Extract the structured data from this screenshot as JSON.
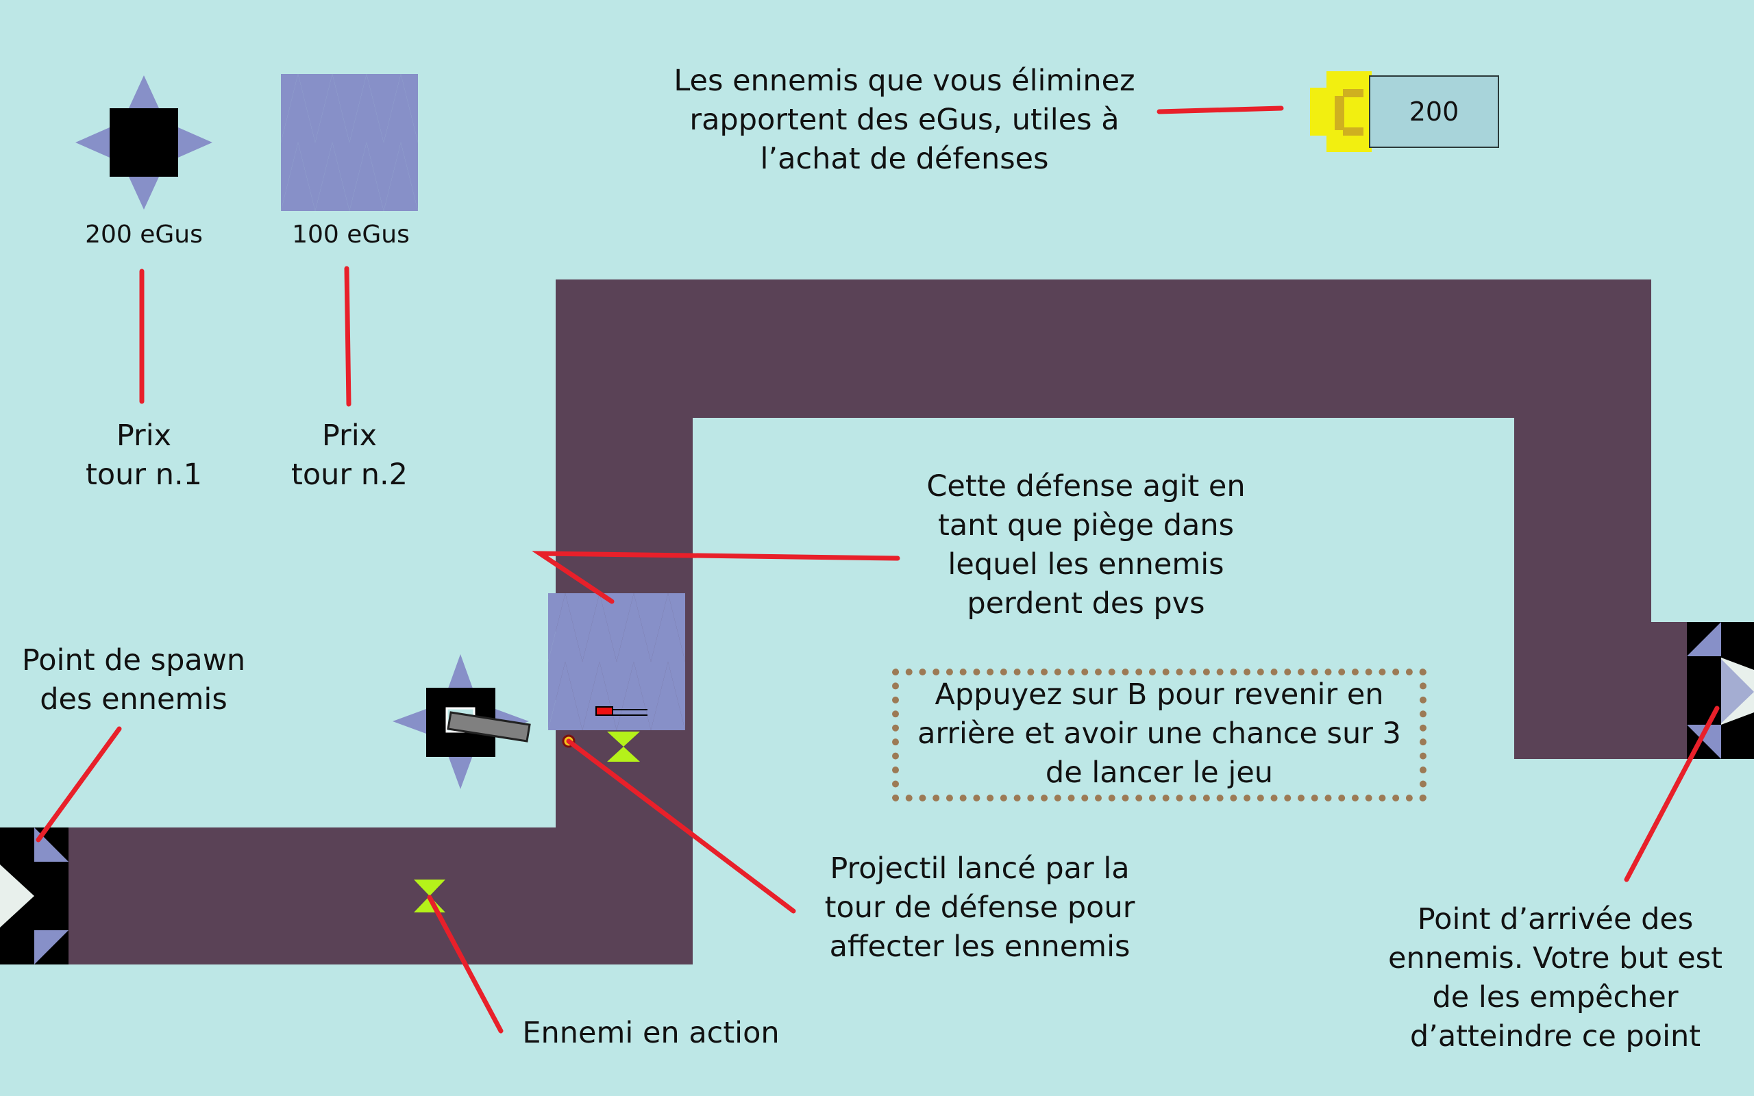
{
  "shop": {
    "tower1": {
      "price": "200 eGus",
      "icon": "spike-tower-icon"
    },
    "tower2": {
      "price": "100 eGus",
      "icon": "spike-trap-icon"
    }
  },
  "currency": {
    "amount": "200",
    "icon": "egu-coin-icon"
  },
  "annotations": {
    "currency_info": "Les ennemis que vous éliminez\nrapportent des eGus, utiles à\nl’achat de défenses",
    "price_tower1": "Prix\ntour n.1",
    "price_tower2": "Prix\ntour n.2",
    "trap_info": "Cette défense agit en\ntant que piège dans\nlequel les ennemis\nperdent des pvs",
    "spawn_info": "Point de spawn\ndes ennemis",
    "back_info": "Appuyez sur B pour revenir en\narrière et avoir une chance sur 3\nde lancer le jeu",
    "projectile_info": "Projectil lancé par la\ntour de défense pour\naffecter les ennemis",
    "enemy_info": "Ennemi en action",
    "arrival_info": "Point d’arrivée des\nennemis. Votre but est\nde les empêcher\nd’atteindre ce point"
  },
  "colors": {
    "background": "#bde7e6",
    "path": "#5a4256",
    "tower_spike": "#8790c8",
    "annotation_line": "#e8202a",
    "enemy": "#b5f21a",
    "coin": "#f2ef10"
  }
}
